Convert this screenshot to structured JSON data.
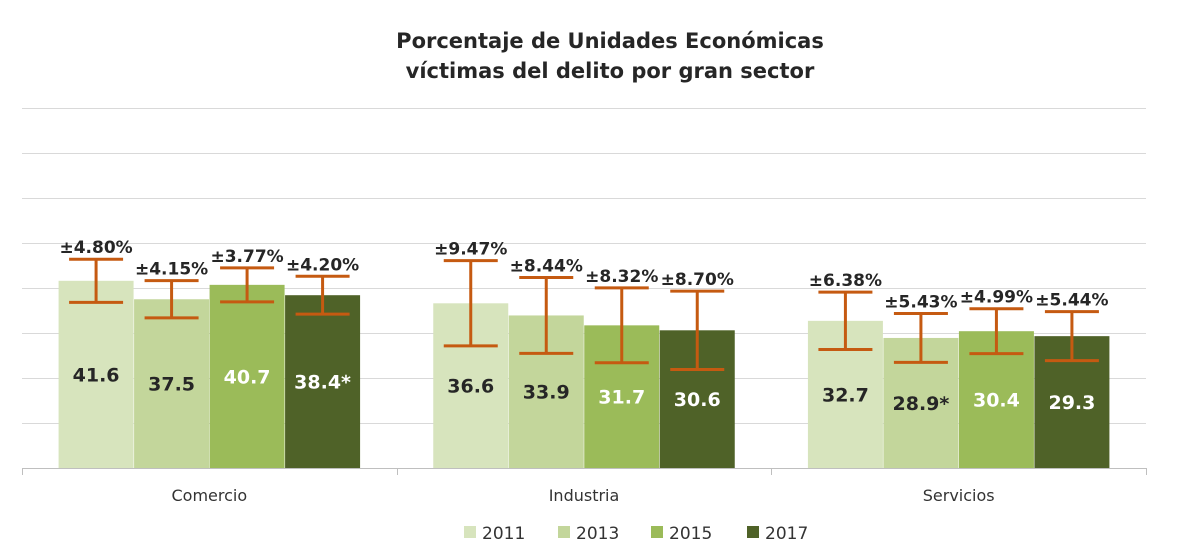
{
  "chart_data": {
    "type": "bar",
    "title": [
      "Porcentaje de Unidades Económicas",
      "víctimas del delito por gran sector"
    ],
    "categories": [
      "Comercio",
      "Industria",
      "Servicios"
    ],
    "ylim": [
      0,
      80
    ],
    "grid": true,
    "legend_position": "bottom",
    "series": [
      {
        "name": "2011",
        "color": "#d7e4bd",
        "label_color": "#262626",
        "values": [
          41.6,
          36.6,
          32.7
        ],
        "value_labels": [
          "41.6",
          "36.6",
          "32.7"
        ],
        "error_labels": [
          "±4.80%",
          "±9.47%",
          "±6.38%"
        ]
      },
      {
        "name": "2013",
        "color": "#c3d69b",
        "label_color": "#262626",
        "values": [
          37.5,
          33.9,
          28.9
        ],
        "value_labels": [
          "37.5",
          "33.9",
          "28.9*"
        ],
        "error_labels": [
          "±4.15%",
          "±8.44%",
          "±5.43%"
        ]
      },
      {
        "name": "2015",
        "color": "#9bbb59",
        "label_color": "#ffffff",
        "values": [
          40.7,
          31.7,
          30.4
        ],
        "value_labels": [
          "40.7",
          "31.7",
          "30.4"
        ],
        "error_labels": [
          "±3.77%",
          "±8.32%",
          "±4.99%"
        ]
      },
      {
        "name": "2017",
        "color": "#4f6228",
        "label_color": "#ffffff",
        "values": [
          38.4,
          30.6,
          29.3
        ],
        "value_labels": [
          "38.4*",
          "30.6",
          "29.3"
        ],
        "error_labels": [
          "±4.20%",
          "±8.70%",
          "±5.44%"
        ]
      }
    ],
    "error_bar_color": "#c55a11"
  }
}
